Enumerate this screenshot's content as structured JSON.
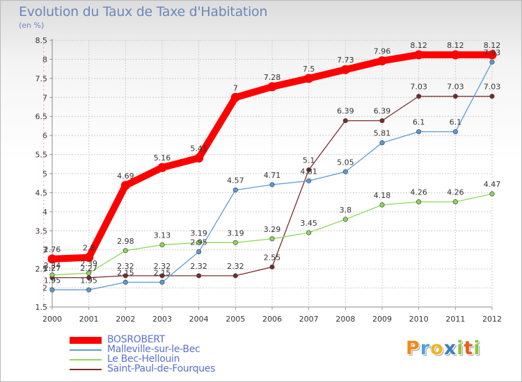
{
  "chart_data": {
    "type": "line",
    "title": "Evolution du Taux de Taxe d'Habitation",
    "subtitle": "(en %)",
    "x": [
      "2000",
      "2001",
      "2002",
      "2003",
      "2004",
      "2005",
      "2006",
      "2007",
      "2008",
      "2009",
      "2010",
      "2011",
      "2012"
    ],
    "ylim": [
      1.5,
      8.5
    ],
    "yticks": [
      "1.5",
      "2",
      "2.5",
      "3",
      "3.5",
      "4",
      "4.5",
      "5",
      "5.5",
      "6",
      "6.5",
      "7",
      "7.5",
      "8",
      "8.5"
    ],
    "grid": true,
    "legend_position": "bottom-left",
    "series": [
      {
        "name": "BOSROBERT",
        "color": "#ff0000",
        "values": [
          2.76,
          2.8,
          4.69,
          5.16,
          5.41,
          7,
          7.28,
          7.5,
          7.73,
          7.96,
          8.12,
          8.12,
          8.12
        ],
        "labels": [
          "2.76",
          "2.8",
          "4.69",
          "5.16",
          "5.41",
          "7",
          "7.28",
          "7.5",
          "7.73",
          "7.96",
          "8.12",
          "8.12",
          "8.12"
        ]
      },
      {
        "name": "Malleville-sur-le-Bec",
        "color": "#5b9bd5",
        "values": [
          1.95,
          1.95,
          2.15,
          2.15,
          2.95,
          4.57,
          4.71,
          4.81,
          5.05,
          5.81,
          6.1,
          6.1,
          7.93
        ],
        "labels": [
          "1.95",
          "1.95",
          "2.15",
          "2.15",
          "2.95",
          "4.57",
          "4.71",
          "4.81",
          "5.05",
          "5.81",
          "6.1",
          "6.1",
          "7.93"
        ]
      },
      {
        "name": "Le Bec-Hellouin",
        "color": "#8ed858",
        "values": [
          2.34,
          2.39,
          2.98,
          3.13,
          3.19,
          3.19,
          3.29,
          3.45,
          3.8,
          4.18,
          4.26,
          4.26,
          4.47
        ],
        "labels": [
          "2.34",
          "2.39",
          "2.98",
          "3.13",
          "3.19",
          "3.19",
          "3.29",
          "3.45",
          "3.8",
          "4.18",
          "4.26",
          "4.26",
          "4.47"
        ]
      },
      {
        "name": "Saint-Paul-de-Fourques",
        "color": "#7a2a2a",
        "values": [
          2.27,
          2.27,
          2.32,
          2.32,
          2.32,
          2.32,
          2.55,
          5.1,
          6.39,
          6.39,
          7.03,
          7.03,
          7.03
        ],
        "labels": [
          "2.27",
          "2.27",
          "2.32",
          "2.32",
          "2.32",
          "2.32",
          "2.55",
          "5.1",
          "6.39",
          "6.39",
          "7.03",
          "7.03",
          "7.03"
        ]
      }
    ]
  },
  "logo": {
    "letters": [
      {
        "char": "P",
        "color": "#f08a1c"
      },
      {
        "char": "r",
        "color": "#4aa3df"
      },
      {
        "char": "o",
        "color": "#f0b41c"
      },
      {
        "char": "x",
        "color": "#3c7dc4"
      },
      {
        "char": "i",
        "color": "#8cc63f"
      },
      {
        "char": "t",
        "color": "#e85d1e"
      },
      {
        "char": "i",
        "color": "#8cc63f"
      }
    ]
  }
}
